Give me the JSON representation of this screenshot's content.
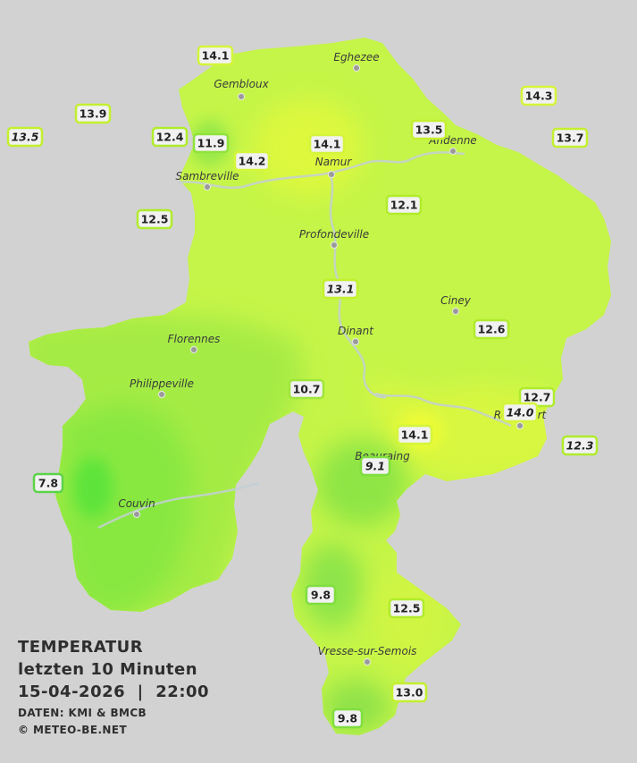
{
  "title": {
    "line1": "TEMPERATUR",
    "line2": "letzten 10 Minuten",
    "line3": "15-04-2026  |  22:00",
    "credit1": "DATEN: KMI & BMCB",
    "credit2": "© METEO-BE.NET"
  },
  "colors": {
    "background": "#d2d2d2",
    "region_fill": "#c3f546",
    "cold_zone": "#8ef04a",
    "warm_zone": "#e4fb3c",
    "river": "#b8c8d8",
    "label_box": "#f1f1f1"
  },
  "cities": [
    {
      "name": "Eghezee"
    },
    {
      "name": "Gembloux"
    },
    {
      "name": "Andenne"
    },
    {
      "name": "Namur"
    },
    {
      "name": "Sambreville"
    },
    {
      "name": "Profondeville"
    },
    {
      "name": "Ciney"
    },
    {
      "name": "Dinant"
    },
    {
      "name": "Florennes"
    },
    {
      "name": "Philippeville"
    },
    {
      "name": "Couvin"
    },
    {
      "name": "Vresse-sur-Semois"
    },
    {
      "name": "Beauraing"
    },
    {
      "name": "Rochefort"
    }
  ],
  "stations": [
    {
      "value": "14.1",
      "color": "#d4f53a",
      "italic": false
    },
    {
      "value": "14.3",
      "color": "#d4f53a",
      "italic": false
    },
    {
      "value": "13.9",
      "color": "#c3f02e",
      "italic": false
    },
    {
      "value": "13.5",
      "color": "#c3f02e",
      "italic": true
    },
    {
      "value": "12.4",
      "color": "#b0ec2c",
      "italic": false
    },
    {
      "value": "11.9",
      "color": "#8fe33a",
      "italic": false
    },
    {
      "value": "14.1",
      "color": "#d4f53a",
      "italic": false
    },
    {
      "value": "13.5",
      "color": "#c3f02e",
      "italic": false
    },
    {
      "value": "13.7",
      "color": "#c3f02e",
      "italic": false
    },
    {
      "value": "14.2",
      "color": "#d4f53a",
      "italic": false
    },
    {
      "value": "12.5",
      "color": "#b0ec2c",
      "italic": false
    },
    {
      "value": "12.1",
      "color": "#b0ec2c",
      "italic": false
    },
    {
      "value": "13.1",
      "color": "#c3f02e",
      "italic": true
    },
    {
      "value": "12.6",
      "color": "#b0ec2c",
      "italic": false
    },
    {
      "value": "10.7",
      "color": "#9fe63c",
      "italic": false
    },
    {
      "value": "12.7",
      "color": "#b0ec2c",
      "italic": false
    },
    {
      "value": "14.0",
      "color": "#d4f53a",
      "italic": true
    },
    {
      "value": "12.3",
      "color": "#b0ec2c",
      "italic": true
    },
    {
      "value": "14.1",
      "color": "#d4f53a",
      "italic": false
    },
    {
      "value": "9.1",
      "color": "#7fde3e",
      "italic": true
    },
    {
      "value": "7.8",
      "color": "#5dd34a",
      "italic": false
    },
    {
      "value": "9.8",
      "color": "#7fde3e",
      "italic": false
    },
    {
      "value": "12.5",
      "color": "#b0ec2c",
      "italic": false
    },
    {
      "value": "13.0",
      "color": "#c3f02e",
      "italic": false
    },
    {
      "value": "9.8",
      "color": "#7fde3e",
      "italic": false
    }
  ]
}
